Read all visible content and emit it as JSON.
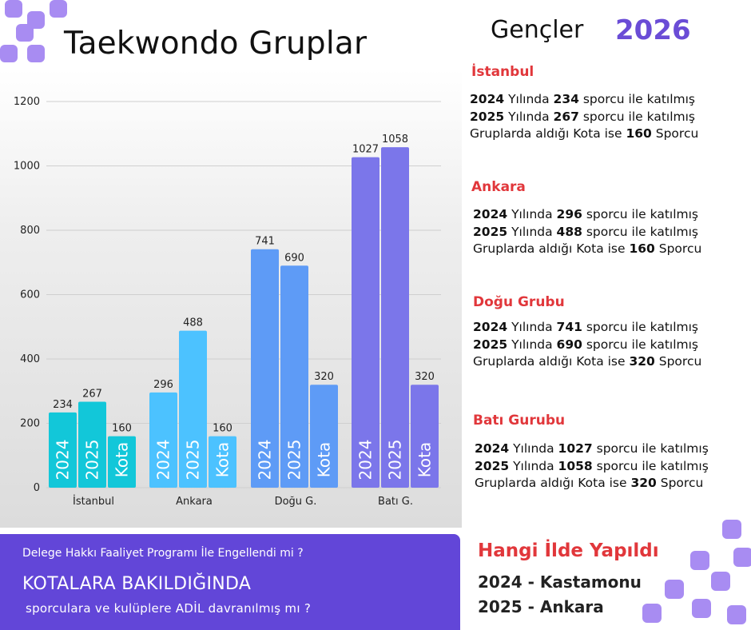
{
  "title": "Taekwondo Gruplar",
  "header": {
    "label": "Gençler",
    "year": "2026"
  },
  "colors": {
    "istanbul": "#12c7d9",
    "ankara": "#4cc2ff",
    "dogu": "#5e9bf6",
    "bati": "#7b76ea",
    "accent_red": "#e1373b",
    "accent_purple": "#6246d8"
  },
  "chart_data": {
    "type": "bar",
    "categories": [
      "İstanbul",
      "Ankara",
      "Doğu G.",
      "Batı G."
    ],
    "series": [
      {
        "name": "2024",
        "values": [
          234,
          296,
          741,
          1027
        ]
      },
      {
        "name": "2025",
        "values": [
          267,
          488,
          690,
          1058
        ]
      },
      {
        "name": "Kota",
        "values": [
          160,
          160,
          320,
          320
        ]
      }
    ],
    "ylim": [
      0,
      1200
    ],
    "yticks": [
      "0",
      "200",
      "400",
      "600",
      "800",
      "1000",
      "1200"
    ],
    "grid": true
  },
  "regions": [
    {
      "name": "İstanbul",
      "line1": {
        "year": "2024",
        "mid": " Yılında ",
        "count": "234",
        "tail": " sporcu ile katılmış"
      },
      "line2": {
        "year": "2025",
        "mid": " Yılında ",
        "count": "267",
        "tail": " sporcu ile katılmış"
      },
      "line3": {
        "head": "Gruplarda aldığı Kota ise ",
        "count": "160",
        "tail": " Sporcu"
      }
    },
    {
      "name": "Ankara",
      "line1": {
        "year": "2024",
        "mid": " Yılında ",
        "count": "296",
        "tail": " sporcu ile katılmış"
      },
      "line2": {
        "year": "2025",
        "mid": " Yılında ",
        "count": "488",
        "tail": " sporcu ile katılmış"
      },
      "line3": {
        "head": "Gruplarda aldığı Kota ise ",
        "count": "160",
        "tail": " Sporcu"
      }
    },
    {
      "name": "Doğu Grubu",
      "line1": {
        "year": "2024",
        "mid": " Yılında ",
        "count": "741",
        "tail": " sporcu ile katılmış"
      },
      "line2": {
        "year": "2025",
        "mid": " Yılında ",
        "count": "690",
        "tail": " sporcu ile katılmış"
      },
      "line3": {
        "head": "Gruplarda aldığı Kota ise ",
        "count": "320",
        "tail": " Sporcu"
      }
    },
    {
      "name": "Batı Gurubu",
      "line1": {
        "year": "2024",
        "mid": " Yılında ",
        "count": "1027",
        "tail": " sporcu ile katılmış"
      },
      "line2": {
        "year": "2025",
        "mid": " Yılında ",
        "count": "1058",
        "tail": " sporcu ile katılmış"
      },
      "line3": {
        "head": "Gruplarda aldığı Kota ise ",
        "count": "320",
        "tail": " Sporcu"
      }
    }
  ],
  "banner": {
    "question": "Delege Hakkı Faaliyet Programı İle Engellendi mi ?",
    "headline": "KOTALARA BAKILDIĞINDA",
    "subline": "sporculara ve kulüplere ADİL davranılmış mı ?"
  },
  "host": {
    "title": "Hangi İlde Yapıldı",
    "line2024": "2024 - Kastamonu",
    "line2025": "2025 - Ankara"
  }
}
